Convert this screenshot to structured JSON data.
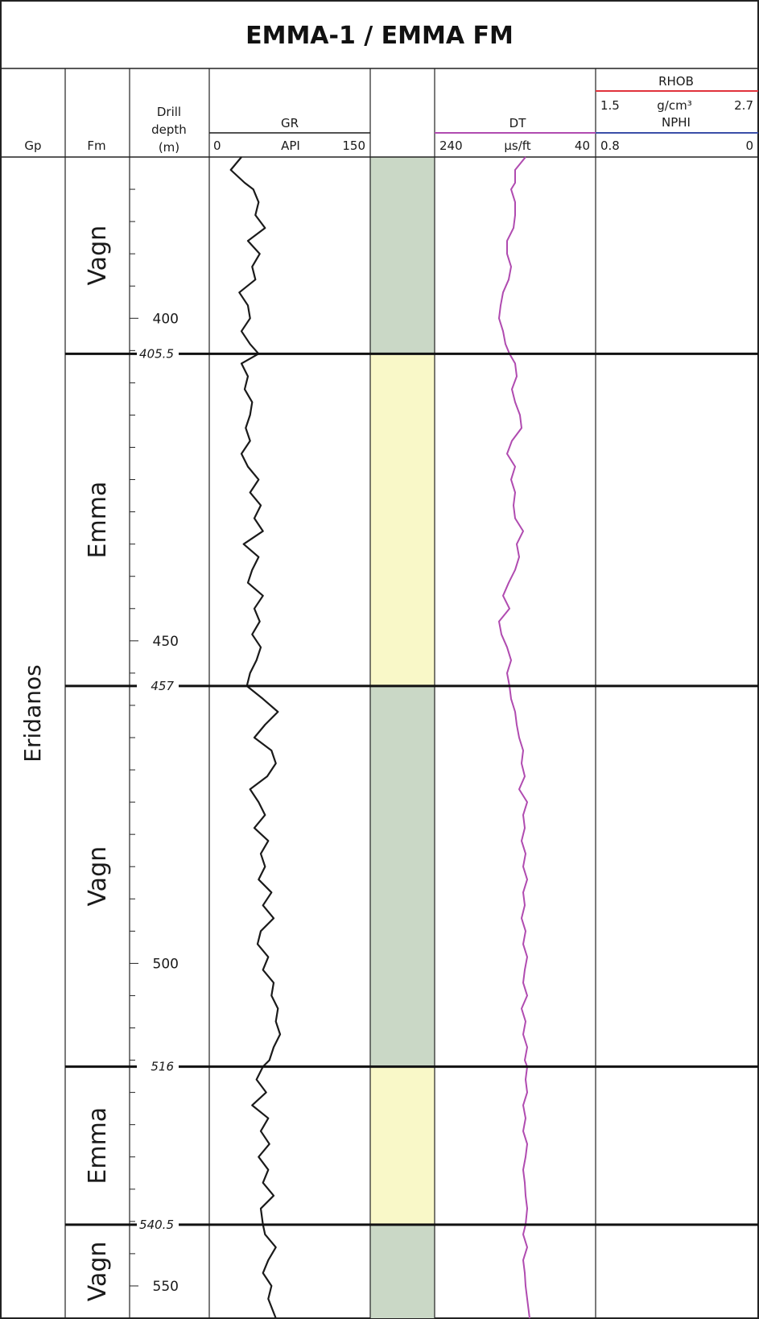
{
  "title": "EMMA-1 / EMMA FM",
  "columns": {
    "gp": "Gp",
    "fm": "Fm",
    "depth": {
      "line1": "Drill",
      "line2": "depth",
      "line3": "(m)"
    },
    "gr": {
      "name": "GR",
      "unit": "API",
      "min": "0",
      "max": "150"
    },
    "dt": {
      "name": "DT",
      "unit": "µs/ft",
      "min": "240",
      "max": "40"
    },
    "rhob": {
      "name": "RHOB",
      "unit": "g/cm³",
      "min": "1.5",
      "max": "2.7"
    },
    "nphi": {
      "name": "NPHI",
      "min": "0.8",
      "max": "0"
    }
  },
  "colors": {
    "gr": "#1a1a1a",
    "dt": "#b04bb0",
    "rhob": "#e0323c",
    "nphi": "#3a4fa8",
    "vagn_fill": "#cad8c6",
    "emma_fill": "#f9f8c8"
  },
  "group": "Eridanos",
  "chart_data": {
    "type": "line",
    "depth_range": [
      375,
      555
    ],
    "depth_ticks": [
      {
        "depth": 400,
        "label": "400"
      },
      {
        "depth": 450,
        "label": "450"
      },
      {
        "depth": 500,
        "label": "500"
      },
      {
        "depth": 550,
        "label": "550"
      }
    ],
    "formation_tops": [
      {
        "depth": 405.5,
        "label": "405.5"
      },
      {
        "depth": 457,
        "label": "457"
      },
      {
        "depth": 516,
        "label": "516"
      },
      {
        "depth": 540.5,
        "label": "540.5"
      }
    ],
    "formations": [
      {
        "name": "Vagn",
        "top": 375,
        "base": 405.5,
        "lith": "vagn"
      },
      {
        "name": "Emma",
        "top": 405.5,
        "base": 457,
        "lith": "emma"
      },
      {
        "name": "Vagn",
        "top": 457,
        "base": 516,
        "lith": "vagn"
      },
      {
        "name": "Emma",
        "top": 516,
        "base": 540.5,
        "lith": "emma"
      },
      {
        "name": "Vagn",
        "top": 540.5,
        "base": 555,
        "lith": "vagn"
      }
    ],
    "series": [
      {
        "name": "GR",
        "x_range": [
          0,
          150
        ],
        "depth": [
          375,
          377,
          379,
          380,
          382,
          384,
          386,
          388,
          390,
          392,
          394,
          396,
          398,
          400,
          402,
          404,
          405.5,
          407,
          409,
          411,
          413,
          415,
          417,
          419,
          421,
          423,
          425,
          427,
          429,
          431,
          433,
          435,
          437,
          439,
          441,
          443,
          445,
          447,
          449,
          451,
          453,
          455,
          457,
          459,
          461,
          463,
          465,
          467,
          469,
          471,
          473,
          475,
          477,
          479,
          481,
          483,
          485,
          487,
          489,
          491,
          493,
          495,
          497,
          499,
          501,
          503,
          505,
          507,
          509,
          511,
          513,
          515,
          516,
          518,
          520,
          522,
          524,
          526,
          528,
          530,
          532,
          534,
          536,
          538,
          540.5,
          542,
          544,
          546,
          548,
          550,
          552,
          555
        ],
        "values": [
          30,
          20,
          33,
          41,
          46,
          43,
          52,
          36,
          47,
          40,
          43,
          28,
          36,
          38,
          30,
          38,
          46,
          30,
          36,
          33,
          40,
          38,
          34,
          38,
          30,
          36,
          46,
          38,
          48,
          42,
          50,
          32,
          46,
          40,
          36,
          50,
          42,
          47,
          40,
          48,
          44,
          38,
          35,
          50,
          64,
          52,
          42,
          58,
          62,
          54,
          38,
          46,
          52,
          42,
          55,
          48,
          52,
          46,
          58,
          50,
          60,
          48,
          45,
          55,
          50,
          60,
          58,
          64,
          62,
          66,
          60,
          56,
          50,
          44,
          53,
          40,
          55,
          48,
          56,
          46,
          55,
          50,
          60,
          48,
          50,
          52,
          62,
          55,
          50,
          58,
          55,
          62
        ]
      },
      {
        "name": "DT",
        "x_range": [
          240,
          40
        ],
        "depth": [
          375,
          377,
          379,
          380,
          382,
          384,
          386,
          388,
          390,
          392,
          394,
          396,
          398,
          400,
          402,
          404,
          405.5,
          407,
          409,
          411,
          413,
          415,
          417,
          419,
          421,
          423,
          425,
          427,
          429,
          431,
          433,
          435,
          437,
          439,
          441,
          443,
          445,
          447,
          449,
          451,
          453,
          455,
          457,
          459,
          461,
          463,
          465,
          467,
          469,
          471,
          473,
          475,
          477,
          479,
          481,
          483,
          485,
          487,
          489,
          491,
          493,
          495,
          497,
          499,
          501,
          503,
          505,
          507,
          509,
          511,
          513,
          515,
          516,
          518,
          520,
          522,
          524,
          526,
          528,
          530,
          532,
          534,
          536,
          538,
          540.5,
          542,
          544,
          546,
          548,
          550,
          552,
          555
        ],
        "values": [
          127,
          140,
          140,
          145,
          140,
          140,
          142,
          150,
          150,
          145,
          148,
          155,
          158,
          160,
          155,
          152,
          147,
          140,
          138,
          144,
          140,
          134,
          132,
          144,
          150,
          140,
          145,
          140,
          142,
          140,
          130,
          138,
          135,
          140,
          148,
          155,
          147,
          160,
          157,
          150,
          145,
          150,
          147,
          145,
          140,
          138,
          135,
          130,
          132,
          128,
          135,
          125,
          130,
          128,
          132,
          127,
          130,
          125,
          130,
          128,
          132,
          127,
          130,
          125,
          128,
          130,
          125,
          132,
          127,
          130,
          125,
          128,
          125,
          127,
          125,
          130,
          127,
          130,
          125,
          127,
          130,
          128,
          127,
          125,
          127,
          130,
          125,
          130,
          128,
          127,
          125,
          122
        ]
      },
      {
        "name": "RHOB",
        "x_range": [
          1.5,
          2.7
        ],
        "depth": [],
        "values": []
      },
      {
        "name": "NPHI",
        "x_range": [
          0.8,
          0
        ],
        "depth": [],
        "values": []
      }
    ]
  }
}
